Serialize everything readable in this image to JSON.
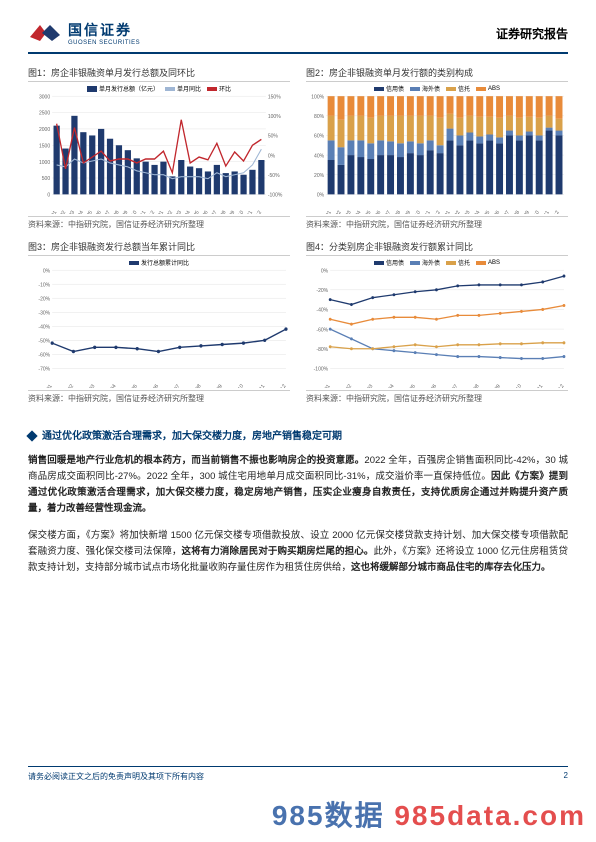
{
  "header": {
    "company_cn": "国信证券",
    "company_en": "GUOSEN SECURITIES",
    "report_type": "证券研究报告"
  },
  "chart1": {
    "title": "图1：房企非银融资单月发行总额及同环比",
    "source": "资料来源：中指研究院，国信证券经济研究所整理",
    "type": "bar-line-combo",
    "legend": [
      {
        "label": "单月发行总额（亿元）",
        "color": "#1f3a6e",
        "kind": "bar"
      },
      {
        "label": "单月同比",
        "color": "#9fb6d4",
        "kind": "line"
      },
      {
        "label": "环比",
        "color": "#c1272d",
        "kind": "line"
      }
    ],
    "categories": [
      "2021/01",
      "2021/02",
      "2021/03",
      "2021/04",
      "2021/05",
      "2021/06",
      "2021/07",
      "2021/08",
      "2021/09",
      "2021/10",
      "2021/11",
      "2021/12",
      "2022/01",
      "2022/02",
      "2022/03",
      "2022/04",
      "2022/05",
      "2022/06",
      "2022/07",
      "2022/08",
      "2022/09",
      "2022/10",
      "2022/11",
      "2022/12"
    ],
    "bar_values": [
      2100,
      1400,
      2400,
      1900,
      1800,
      2000,
      1700,
      1500,
      1350,
      1100,
      1000,
      900,
      1000,
      550,
      1050,
      850,
      800,
      700,
      900,
      650,
      700,
      600,
      750,
      1050
    ],
    "yoy": [
      -25,
      -30,
      -10,
      -20,
      -15,
      -10,
      -20,
      -25,
      -30,
      -40,
      -45,
      -50,
      -50,
      -60,
      -55,
      -55,
      -55,
      -60,
      -45,
      -55,
      -50,
      -45,
      -25,
      15
    ],
    "mom": [
      80,
      -35,
      70,
      -20,
      -5,
      10,
      -15,
      -10,
      -10,
      -20,
      -10,
      -10,
      10,
      -45,
      90,
      -20,
      -5,
      -12,
      30,
      -28,
      8,
      -15,
      25,
      40
    ],
    "y1_lim": [
      0,
      3000
    ],
    "y1_step": 500,
    "y2_lim": [
      -100,
      150
    ],
    "y2_step": 50,
    "bar_color": "#1f3a6e",
    "yoy_color": "#9fb6d4",
    "mom_color": "#c1272d",
    "grid_color": "#dddddd"
  },
  "chart2": {
    "title": "图2：房企非银融资单月发行额的类别构成",
    "source": "资料来源：中指研究院，国信证券经济研究所整理",
    "type": "stacked-bar-100",
    "legend": [
      {
        "label": "信用债",
        "color": "#1f3a6e"
      },
      {
        "label": "海外债",
        "color": "#5a7fb5"
      },
      {
        "label": "信托",
        "color": "#d9a14a"
      },
      {
        "label": "ABS",
        "color": "#e88b3a"
      }
    ],
    "categories": [
      "2021/01",
      "2021/02",
      "2021/03",
      "2021/04",
      "2021/05",
      "2021/06",
      "2021/07",
      "2021/08",
      "2021/09",
      "2021/10",
      "2021/11",
      "2021/12",
      "2022/01",
      "2022/02",
      "2022/03",
      "2022/04",
      "2022/05",
      "2022/06",
      "2022/07",
      "2022/08",
      "2022/09",
      "2022/10",
      "2022/11",
      "2022/12"
    ],
    "stacks": [
      [
        35,
        30,
        40,
        38,
        36,
        40,
        40,
        38,
        42,
        40,
        45,
        42,
        55,
        50,
        55,
        52,
        55,
        52,
        60,
        55,
        60,
        55,
        65,
        60
      ],
      [
        20,
        18,
        15,
        17,
        16,
        15,
        14,
        14,
        12,
        12,
        10,
        8,
        12,
        10,
        8,
        7,
        6,
        6,
        5,
        5,
        4,
        5,
        3,
        5
      ],
      [
        25,
        28,
        25,
        25,
        26,
        25,
        26,
        28,
        26,
        28,
        25,
        28,
        15,
        18,
        17,
        20,
        18,
        20,
        15,
        18,
        15,
        18,
        12,
        12
      ],
      [
        20,
        24,
        20,
        20,
        22,
        20,
        20,
        20,
        20,
        20,
        20,
        22,
        18,
        22,
        20,
        21,
        21,
        22,
        20,
        22,
        21,
        22,
        20,
        23
      ]
    ],
    "y_lim": [
      0,
      100
    ],
    "y_step": 20,
    "grid_color": "#dddddd"
  },
  "chart3": {
    "title": "图3：房企非银融资发行总额当年累计同比",
    "source": "资料来源：中指研究院，国信证券经济研究所整理",
    "type": "line",
    "legend": [
      {
        "label": "发行总额累计同比",
        "color": "#1f3a6e"
      }
    ],
    "categories": [
      "2022/01",
      "2022/02",
      "2022/03",
      "2022/04",
      "2022/05",
      "2022/06",
      "2022/07",
      "2022/08",
      "2022/09",
      "2022/10",
      "2022/11",
      "2022/12"
    ],
    "values": [
      -52,
      -58,
      -55,
      -55,
      -56,
      -58,
      -55,
      -54,
      -53,
      -52,
      -50,
      -42
    ],
    "y_lim": [
      -70,
      0
    ],
    "y_step": 10,
    "line_color": "#1f3a6e",
    "grid_color": "#dddddd"
  },
  "chart4": {
    "title": "图4：分类别房企非银融资发行额累计同比",
    "source": "资料来源：中指研究院，国信证券经济研究所整理",
    "type": "multi-line",
    "legend": [
      {
        "label": "信用债",
        "color": "#1f3a6e"
      },
      {
        "label": "海外债",
        "color": "#5a7fb5"
      },
      {
        "label": "信托",
        "color": "#d9a14a"
      },
      {
        "label": "ABS",
        "color": "#e88b3a"
      }
    ],
    "categories": [
      "2022/01",
      "2022/02",
      "2022/03",
      "2022/04",
      "2022/05",
      "2022/06",
      "2022/07",
      "2022/08",
      "2022/09",
      "2022/10",
      "2022/11",
      "2022/12"
    ],
    "series": {
      "credit": [
        -30,
        -35,
        -28,
        -25,
        -22,
        -20,
        -16,
        -15,
        -15,
        -15,
        -12,
        -6
      ],
      "overseas": [
        -60,
        -70,
        -80,
        -82,
        -84,
        -86,
        -88,
        -88,
        -89,
        -90,
        -90,
        -88
      ],
      "trust": [
        -78,
        -80,
        -80,
        -78,
        -76,
        -78,
        -76,
        -76,
        -75,
        -75,
        -74,
        -74
      ],
      "abs": [
        -50,
        -55,
        -50,
        -48,
        -48,
        -50,
        -46,
        -46,
        -44,
        -42,
        -40,
        -36
      ]
    },
    "y_lim": [
      -100,
      0
    ],
    "y_step": 20,
    "grid_color": "#dddddd"
  },
  "body": {
    "section_title": "通过优化政策激活合理需求，加大保交楼力度，房地产销售稳定可期",
    "para1_a": "销售回暖是地产行业危机的根本药方，而当前销售不振也影响房企的投资意愿。",
    "para1_b": "2022 全年，百强房企销售面积同比-42%，30 城商品房成交面积同比-27%。2022 全年，300 城住宅用地单月成交面积同比-31%，成交溢价率一直保持低位。",
    "para1_c": "因此《方案》提到通过优化政策激活合理需求，加大保交楼力度，稳定房地产销售，压实企业瘦身自救责任，支持优质房企通过并购提升资产质量，着力改善经营性现金流。",
    "para2_a": "保交楼方面，《方案》将加快新增 1500 亿元保交楼专项借款投放、设立 2000 亿元保交楼贷款支持计划、加大保交楼专项借款配套融资力度、强化保交楼司法保障，",
    "para2_b": "这将有力消除居民对于购买期房烂尾的担心。",
    "para2_c": "此外，《方案》还将设立 1000 亿元住房租赁贷款支持计划，支持部分城市试点市场化批量收购存量住房作为租赁住房供给，",
    "para2_d": "这也将缓解部分城市商品住宅的库存去化压力。"
  },
  "footer": {
    "disclaimer": "请务必阅读正文之后的免责声明及其项下所有内容",
    "page_no": "2"
  },
  "watermark": {
    "text": "985数据  985data.com",
    "color1": "#2a5aa0",
    "color2": "#e03030"
  }
}
